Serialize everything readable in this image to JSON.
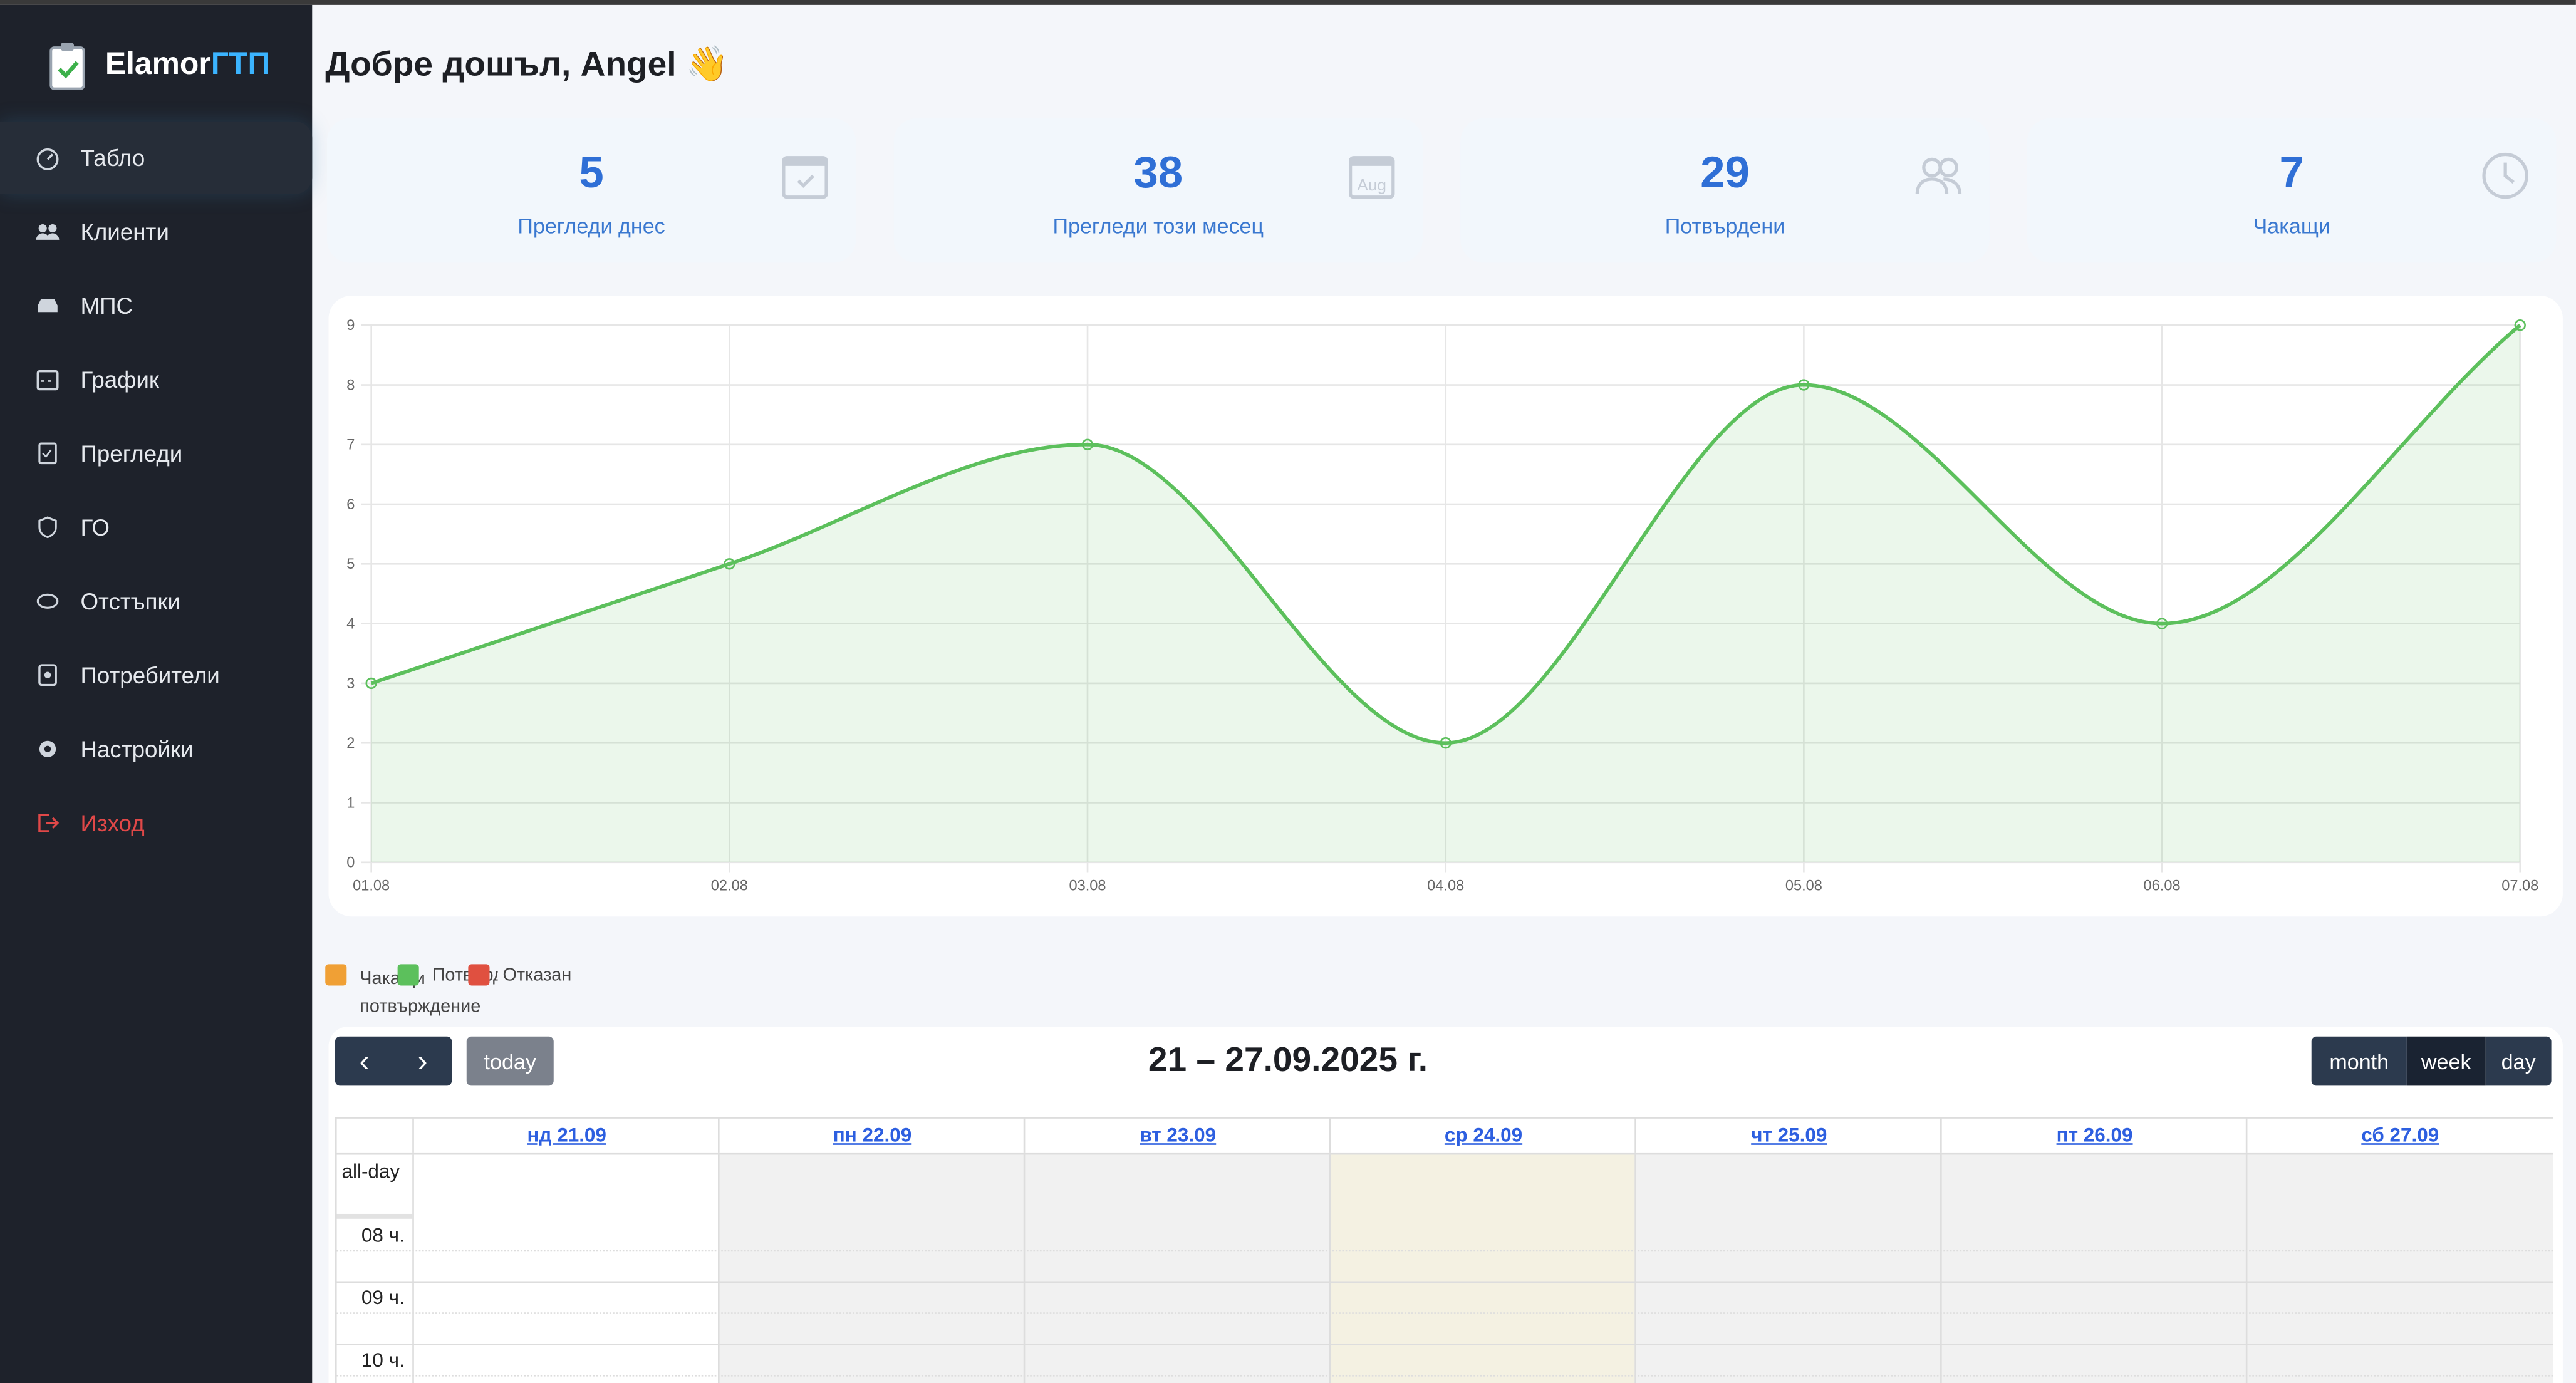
{
  "app": {
    "brand_main": "Elamor",
    "brand_accent": "ГТП"
  },
  "sidebar": {
    "items": [
      {
        "label": "Табло",
        "icon": "dashboard-icon",
        "active": true
      },
      {
        "label": "Клиенти",
        "icon": "users-icon"
      },
      {
        "label": "МПС",
        "icon": "car-icon"
      },
      {
        "label": "График",
        "icon": "calendar-icon"
      },
      {
        "label": "Прегледи",
        "icon": "checklist-icon"
      },
      {
        "label": "ГО",
        "icon": "shield-icon"
      },
      {
        "label": "Отстъпки",
        "icon": "piggy-bank-icon"
      },
      {
        "label": "Потребители",
        "icon": "id-badge-icon"
      },
      {
        "label": "Настройки",
        "icon": "gear-icon"
      },
      {
        "label": "Изход",
        "icon": "logout-icon"
      }
    ]
  },
  "header": {
    "title": "Добре дошъл, Angel 👋"
  },
  "stats": [
    {
      "value": "5",
      "label": "Прегледи днес",
      "icon": "calendar-check-icon"
    },
    {
      "value": "38",
      "label": "Прегледи този месец",
      "icon": "calendar-month-icon",
      "icon_text": "Aug"
    },
    {
      "value": "29",
      "label": "Потвърдени",
      "icon": "users-icon"
    },
    {
      "value": "7",
      "label": "Чакащи",
      "icon": "clock-icon"
    }
  ],
  "chart_data": {
    "type": "area",
    "categories": [
      "01.08",
      "02.08",
      "03.08",
      "04.08",
      "05.08",
      "06.08",
      "07.08"
    ],
    "values": [
      3,
      5,
      7,
      2,
      8,
      4,
      9
    ],
    "ylim": [
      0,
      9
    ],
    "yticks": [
      "0",
      "1",
      "2",
      "3",
      "4",
      "5",
      "6",
      "7",
      "8",
      "9"
    ],
    "grid": true,
    "color": "#5cc05c"
  },
  "legend": [
    {
      "label": "Чакащи потвърждение",
      "color": "#f0a035"
    },
    {
      "label": "Потвърден",
      "color": "#5cc05c"
    },
    {
      "label": "Отказан",
      "color": "#e05040"
    }
  ],
  "calendar": {
    "prev": "‹",
    "next": "›",
    "today": "today",
    "range": "21 – 27.09.2025 г.",
    "views": [
      "month",
      "week",
      "day"
    ],
    "active_view": "week",
    "days": [
      "нд 21.09",
      "пн 22.09",
      "вт 23.09",
      "ср 24.09",
      "чт 25.09",
      "пт 26.09",
      "сб 27.09"
    ],
    "allday": "all-day",
    "hours": [
      "08 ч.",
      "09 ч.",
      "10 ч."
    ]
  }
}
